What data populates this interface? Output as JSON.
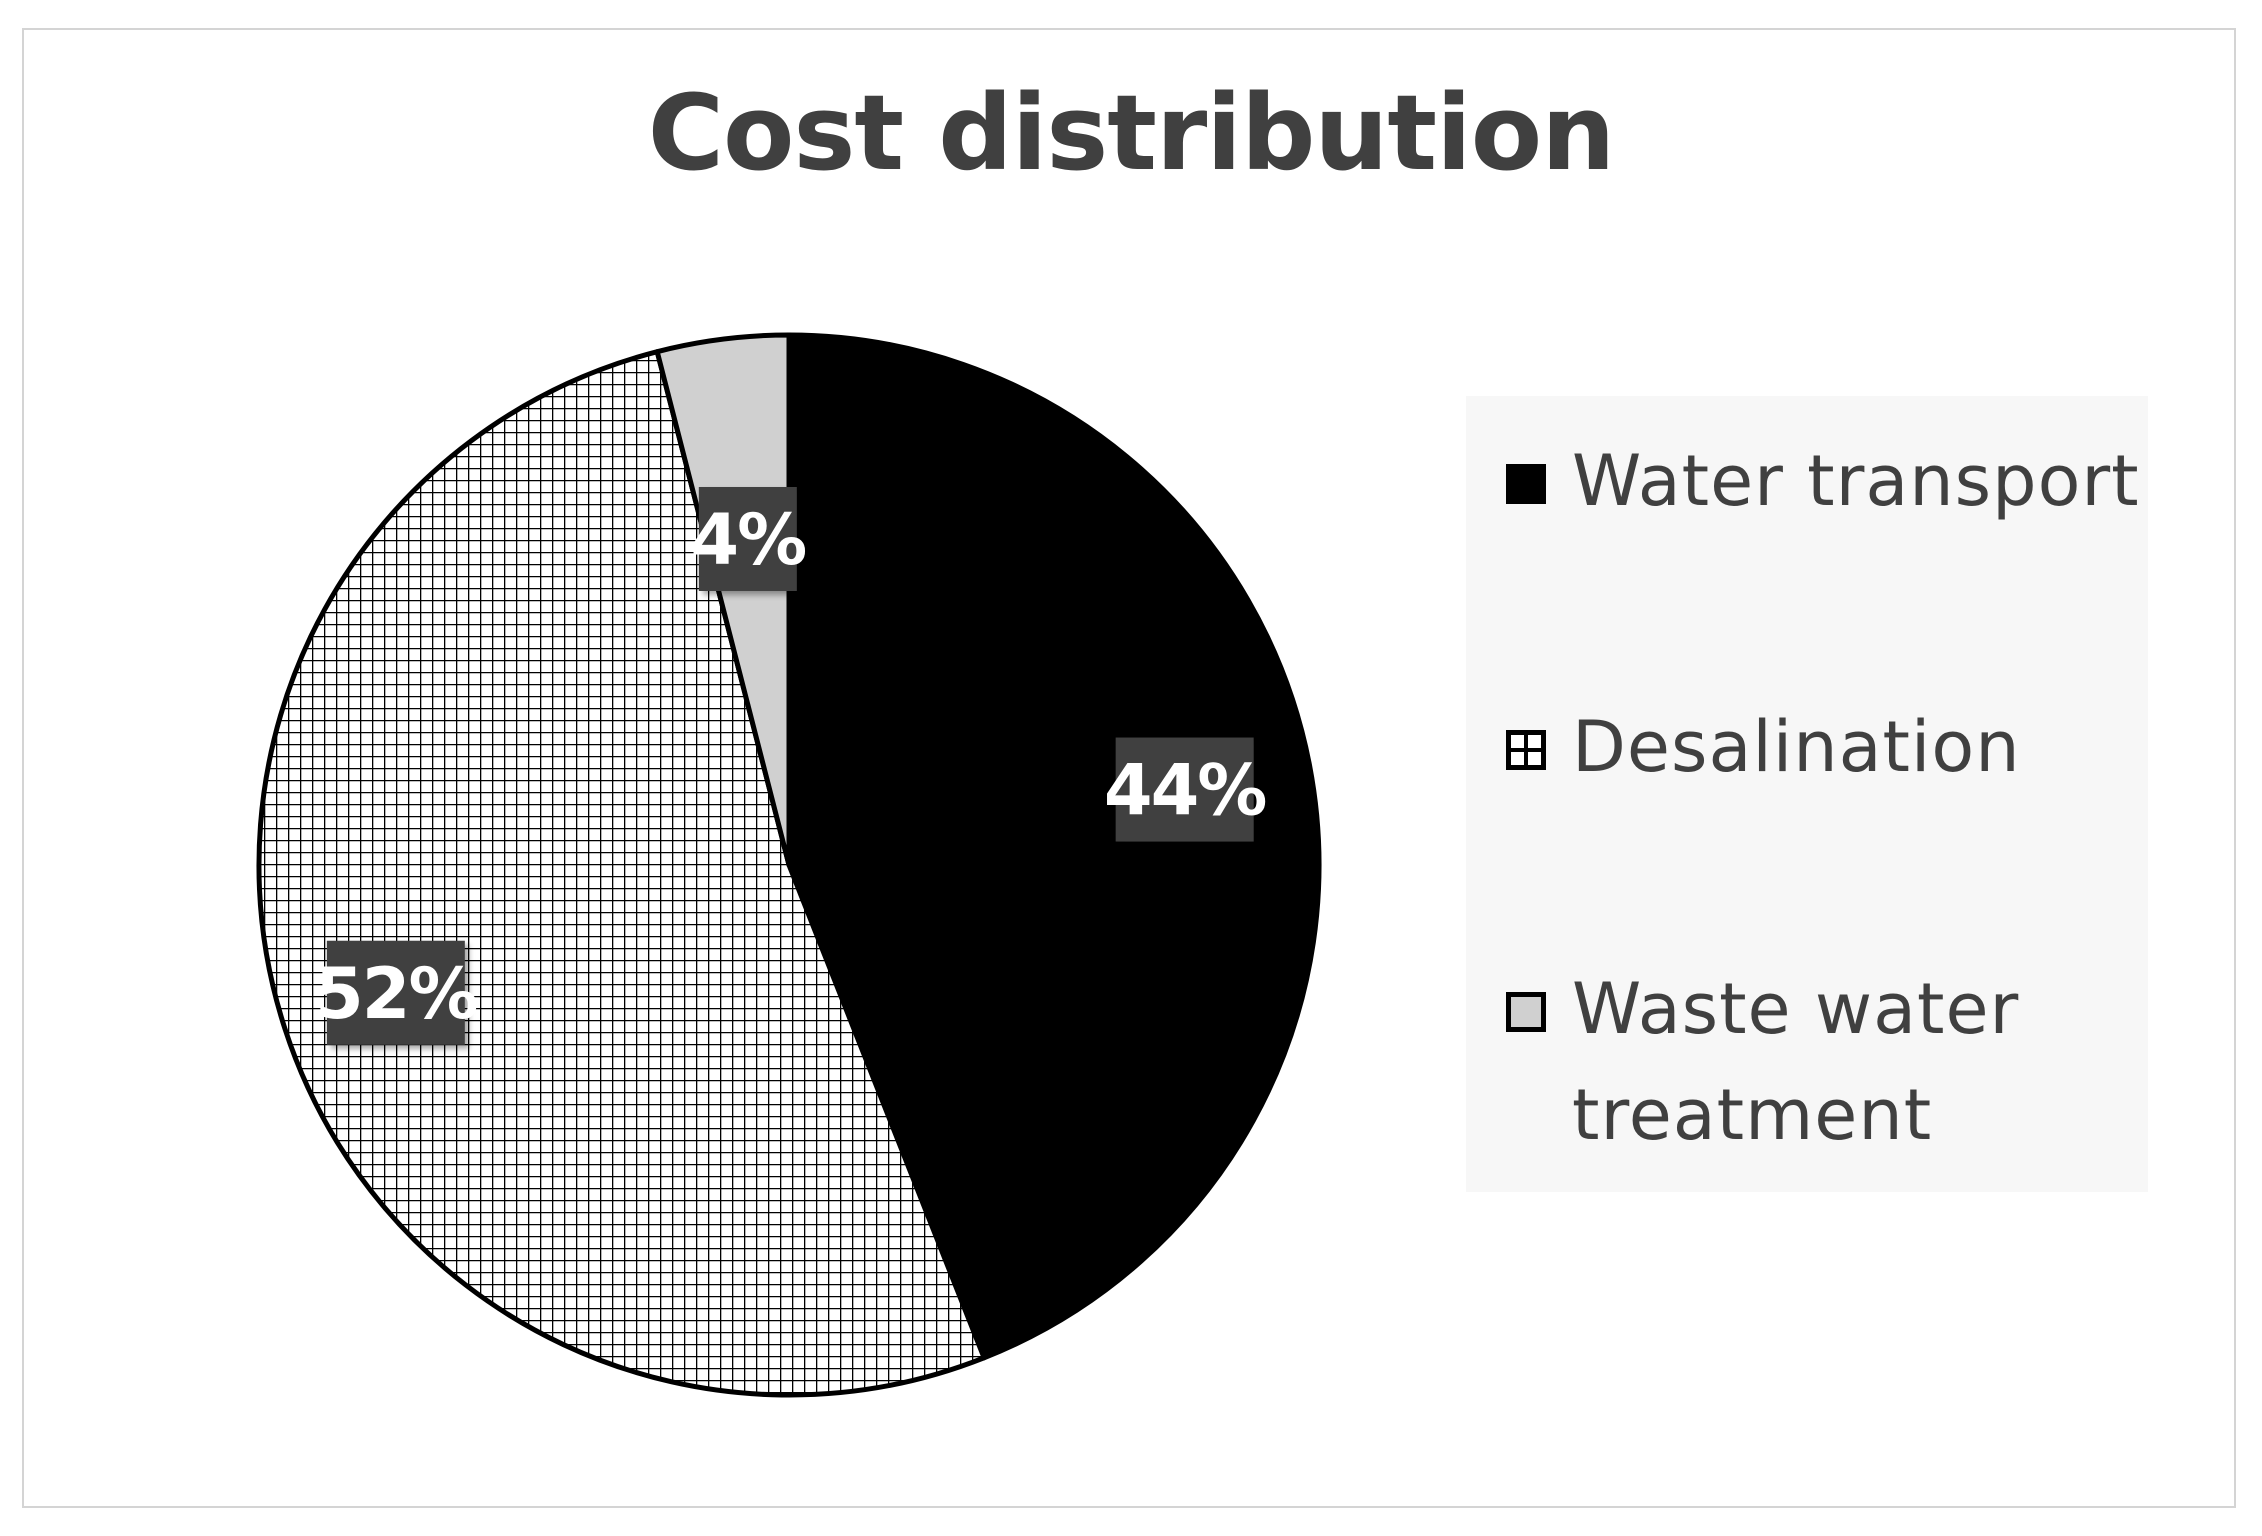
{
  "chart_data": {
    "type": "pie",
    "title": "Cost distribution",
    "slices": [
      {
        "label": "Water transport",
        "value": 44,
        "data_label": "44%",
        "fill": "solid",
        "color": "#000000"
      },
      {
        "label": "Desalination",
        "value": 52,
        "data_label": "52%",
        "fill": "grid-hatch",
        "color": "#000000"
      },
      {
        "label": "Waste water treatment",
        "value": 4,
        "data_label": "4%",
        "fill": "solid",
        "color": "#d0d0d0"
      }
    ],
    "start_angle": "12 o'clock",
    "direction": "clockwise",
    "legend_position": "right",
    "label_style": "white bold text on dark grey boxes"
  }
}
